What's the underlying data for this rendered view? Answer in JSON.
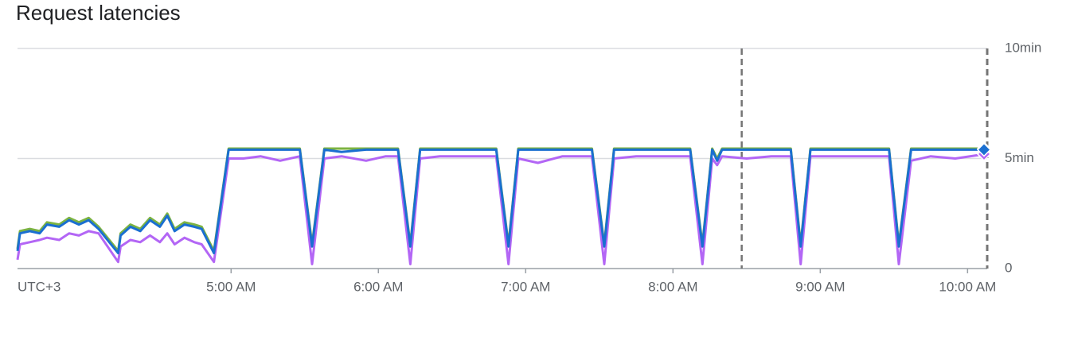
{
  "chart_data": {
    "type": "line",
    "title": "Request latencies",
    "timezone": "UTC+3",
    "x": [
      "3:33 AM",
      "3:34 AM",
      "3:38 AM",
      "3:42 AM",
      "3:45 AM",
      "3:50 AM",
      "3:54 AM",
      "3:58 AM",
      "4:02 AM",
      "4:06 AM",
      "4:14 AM",
      "4:15 AM",
      "4:19 AM",
      "4:23 AM",
      "4:27 AM",
      "4:31 AM",
      "4:34 AM",
      "4:37 AM",
      "4:41 AM",
      "4:45 AM",
      "4:48 AM",
      "4:53 AM",
      "4:59 AM",
      "5:05 AM",
      "5:12 AM",
      "5:20 AM",
      "5:28 AM",
      "5:33 AM",
      "5:38 AM",
      "5:45 AM",
      "5:55 AM",
      "6:03 AM",
      "6:08 AM",
      "6:13 AM",
      "6:17 AM",
      "6:25 AM",
      "6:35 AM",
      "6:48 AM",
      "6:53 AM",
      "6:57 AM",
      "7:05 AM",
      "7:15 AM",
      "7:27 AM",
      "7:32 AM",
      "7:36 AM",
      "7:45 AM",
      "7:55 AM",
      "8:07 AM",
      "8:12 AM",
      "8:16 AM",
      "8:18 AM",
      "8:20 AM",
      "8:30 AM",
      "8:40 AM",
      "8:48 AM",
      "8:52 AM",
      "8:56 AM",
      "9:10 AM",
      "9:28 AM",
      "9:32 AM",
      "9:37 AM",
      "9:45 AM",
      "9:55 AM",
      "10:07 AM"
    ],
    "series": [
      {
        "color": "#b366f5",
        "values": [
          0.4,
          1.1,
          1.2,
          1.3,
          1.4,
          1.3,
          1.6,
          1.5,
          1.7,
          1.6,
          0.3,
          1.0,
          1.3,
          1.2,
          1.5,
          1.2,
          1.6,
          1.1,
          1.4,
          1.2,
          1.1,
          0.3,
          5.0,
          5.0,
          5.1,
          4.9,
          5.1,
          0.2,
          5.0,
          5.1,
          4.9,
          5.1,
          5.1,
          0.2,
          5.0,
          5.1,
          5.1,
          5.1,
          0.2,
          5.0,
          4.8,
          5.1,
          5.1,
          0.2,
          5.0,
          5.1,
          5.1,
          5.1,
          0.2,
          5.0,
          4.7,
          5.1,
          5.0,
          5.1,
          5.1,
          0.2,
          5.1,
          5.1,
          5.1,
          0.2,
          4.9,
          5.1,
          5.0,
          5.2
        ]
      },
      {
        "color": "#7cb342",
        "values": [
          0.9,
          1.7,
          1.8,
          1.7,
          2.1,
          2.0,
          2.3,
          2.1,
          2.3,
          1.9,
          0.8,
          1.6,
          2.0,
          1.8,
          2.3,
          2.0,
          2.5,
          1.8,
          2.1,
          2.0,
          1.9,
          0.8,
          5.45,
          5.45,
          5.45,
          5.45,
          5.45,
          1.1,
          5.45,
          5.45,
          5.45,
          5.45,
          5.45,
          1.1,
          5.45,
          5.45,
          5.45,
          5.45,
          1.1,
          5.45,
          5.45,
          5.45,
          5.45,
          1.1,
          5.45,
          5.45,
          5.45,
          5.45,
          1.1,
          5.45,
          5.0,
          5.45,
          5.45,
          5.45,
          5.45,
          1.1,
          5.45,
          5.45,
          5.45,
          1.1,
          5.45,
          5.45,
          5.45,
          5.45
        ]
      },
      {
        "color": "#1a6fd1",
        "values": [
          0.8,
          1.6,
          1.7,
          1.6,
          2.0,
          1.9,
          2.2,
          2.0,
          2.2,
          1.8,
          0.7,
          1.5,
          1.9,
          1.7,
          2.2,
          1.9,
          2.4,
          1.7,
          2.0,
          1.9,
          1.8,
          0.7,
          5.4,
          5.4,
          5.4,
          5.4,
          5.4,
          1.0,
          5.4,
          5.3,
          5.4,
          5.4,
          5.4,
          1.0,
          5.4,
          5.4,
          5.4,
          5.4,
          1.0,
          5.4,
          5.4,
          5.4,
          5.4,
          1.0,
          5.4,
          5.4,
          5.4,
          5.4,
          1.0,
          5.4,
          4.9,
          5.4,
          5.4,
          5.4,
          5.4,
          1.0,
          5.4,
          5.4,
          5.4,
          1.0,
          5.4,
          5.4,
          5.4,
          5.4
        ]
      }
    ],
    "xlim": [
      "3:33 AM",
      "10:08 AM"
    ],
    "xticks": [
      "5:00 AM",
      "6:00 AM",
      "7:00 AM",
      "8:00 AM",
      "9:00 AM",
      "10:00 AM"
    ],
    "ylim": [
      0,
      10
    ],
    "yticks": [
      0,
      {
        "value": 5,
        "label": "5min"
      },
      {
        "value": 10,
        "label": "10min"
      }
    ],
    "vlines": [
      "8:28 AM",
      "10:08 AM"
    ],
    "grid": true
  }
}
